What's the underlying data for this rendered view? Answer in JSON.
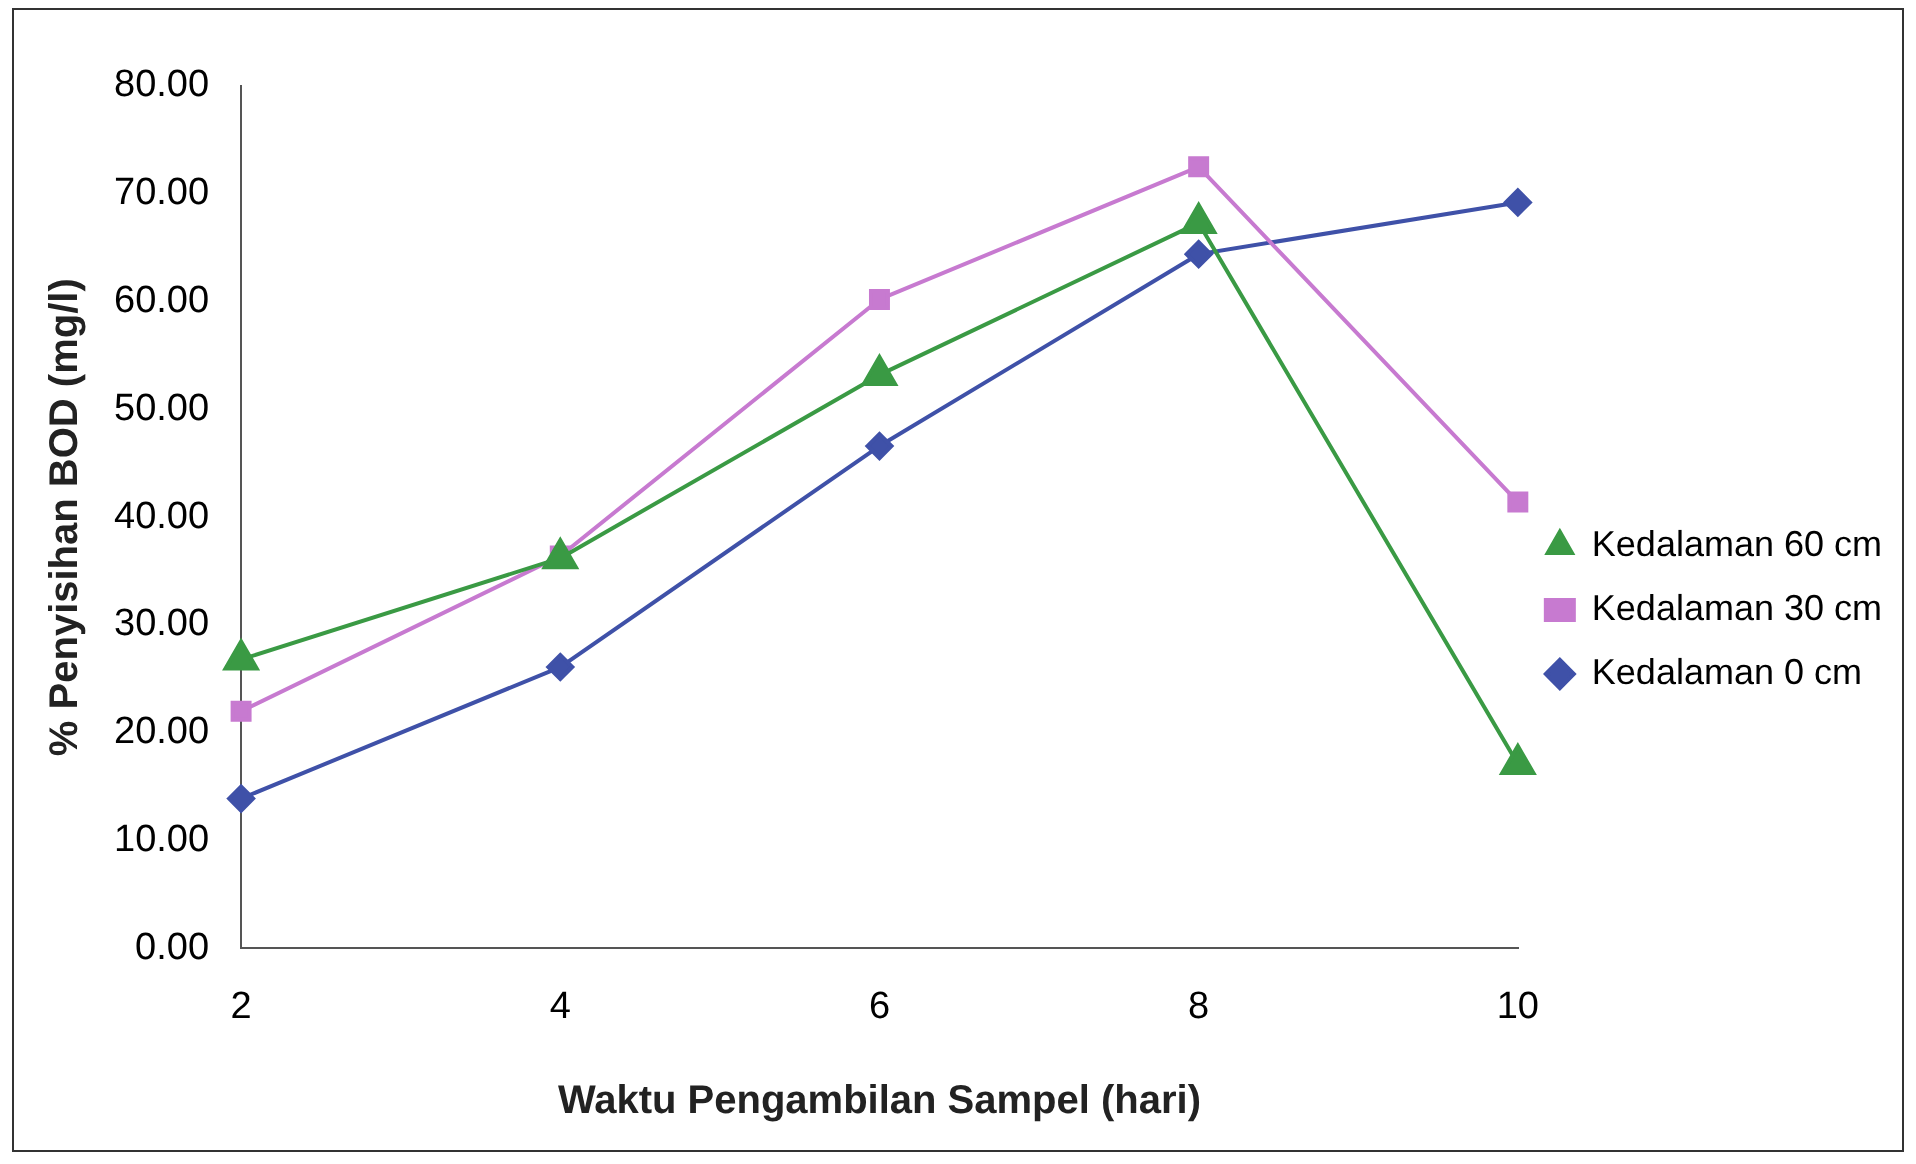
{
  "chart_data": {
    "type": "line",
    "xlabel": "Waktu Pengambilan Sampel (hari)",
    "ylabel": "% Penyisihan BOD (mg/l)",
    "categories": [
      "2",
      "4",
      "6",
      "8",
      "10"
    ],
    "series": [
      {
        "name": "Kedalaman 0 cm",
        "color": "#3f51a8",
        "marker": "diamond",
        "values": [
          13.9,
          26.1,
          46.6,
          64.4,
          69.2
        ]
      },
      {
        "name": "Kedalaman 30 cm",
        "color": "#c77ad0",
        "marker": "square",
        "values": [
          22.0,
          36.4,
          60.2,
          72.5,
          41.4
        ]
      },
      {
        "name": "Kedalaman 60 cm",
        "color": "#3a9a44",
        "marker": "triangle",
        "values": [
          26.8,
          36.2,
          53.2,
          67.3,
          17.1
        ]
      }
    ],
    "ylim": [
      0,
      80
    ],
    "yticks": [
      {
        "value": 0,
        "label": "0.00"
      },
      {
        "value": 10,
        "label": "10.00"
      },
      {
        "value": 20,
        "label": "20.00"
      },
      {
        "value": 30,
        "label": "30.00"
      },
      {
        "value": 40,
        "label": "40.00"
      },
      {
        "value": 50,
        "label": "50.00"
      },
      {
        "value": 60,
        "label": "60.00"
      },
      {
        "value": 70,
        "label": "70.00"
      },
      {
        "value": 80,
        "label": "80.00"
      }
    ],
    "grid": false,
    "legend": "right",
    "line_style": "solid"
  }
}
